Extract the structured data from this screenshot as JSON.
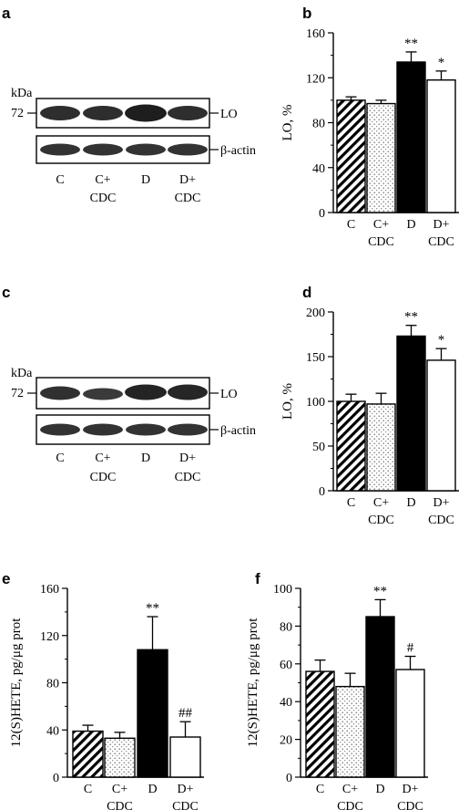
{
  "panels": {
    "a": {
      "label": "a"
    },
    "c": {
      "label": "c"
    }
  },
  "blot": {
    "kda": "kDa",
    "marker": "72",
    "band_top": "LO",
    "band_bottom": "β-actin",
    "lanes": [
      {
        "line1": "C",
        "line2": ""
      },
      {
        "line1": "C+",
        "line2": "CDC"
      },
      {
        "line1": "D",
        "line2": ""
      },
      {
        "line1": "D+",
        "line2": "CDC"
      }
    ]
  },
  "colors": {
    "C": "hatched black",
    "C+CDC": "stippled gray",
    "D": "#000000",
    "D+CDC": "#ffffff"
  },
  "chart_data": [
    {
      "panel": "b",
      "type": "bar",
      "ylabel": "LO, %",
      "ylim": [
        0,
        160
      ],
      "yticks": [
        0,
        40,
        80,
        120,
        160
      ],
      "categories": [
        "C",
        "C+ CDC",
        "D",
        "D+ CDC"
      ],
      "values": [
        100,
        97,
        134,
        118
      ],
      "errors": [
        3,
        3,
        9,
        8
      ],
      "significance": [
        "",
        "",
        "**",
        "*"
      ]
    },
    {
      "panel": "d",
      "type": "bar",
      "ylabel": "LO, %",
      "ylim": [
        0,
        200
      ],
      "yticks": [
        0,
        50,
        100,
        150,
        200
      ],
      "categories": [
        "C",
        "C+ CDC",
        "D",
        "D+ CDC"
      ],
      "values": [
        100,
        97,
        173,
        146
      ],
      "errors": [
        8,
        12,
        12,
        13
      ],
      "significance": [
        "",
        "",
        "**",
        "*"
      ]
    },
    {
      "panel": "e",
      "type": "bar",
      "ylabel": "12(S)HETE, pg/μg prot",
      "ylim": [
        0,
        160
      ],
      "yticks": [
        0,
        40,
        80,
        120,
        160
      ],
      "categories": [
        "C",
        "C+ CDC",
        "D",
        "D+ CDC"
      ],
      "values": [
        39,
        33,
        108,
        34
      ],
      "errors": [
        5,
        5,
        28,
        13
      ],
      "significance": [
        "",
        "",
        "**",
        "##"
      ]
    },
    {
      "panel": "f",
      "type": "bar",
      "ylabel": "12(S)HETE, pg/μg prot",
      "ylim": [
        0,
        100
      ],
      "yticks": [
        0,
        20,
        40,
        60,
        80,
        100
      ],
      "categories": [
        "C",
        "C+ CDC",
        "D",
        "D+ CDC"
      ],
      "values": [
        56,
        48,
        85,
        57
      ],
      "errors": [
        6,
        7,
        9,
        7
      ],
      "significance": [
        "",
        "",
        "**",
        "#"
      ]
    }
  ]
}
